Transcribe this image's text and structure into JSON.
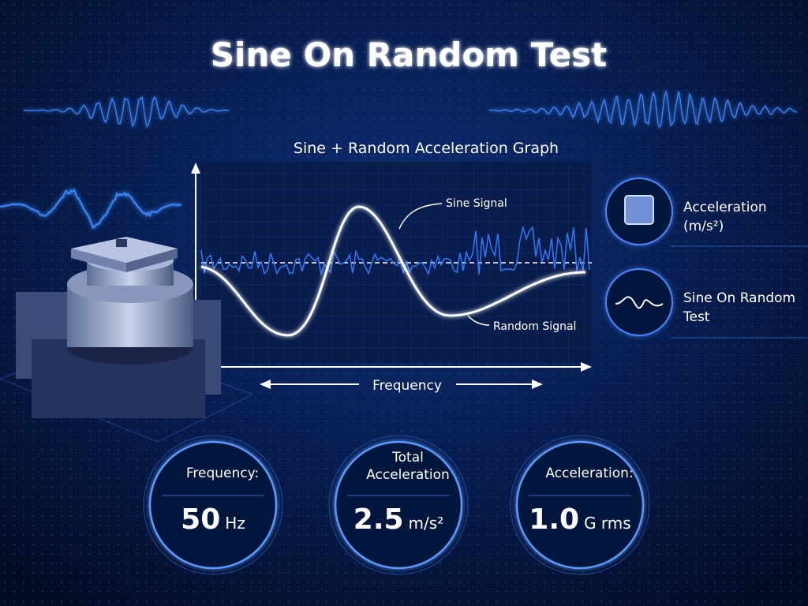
{
  "header": {
    "title": "Sine On Random Test"
  },
  "graph": {
    "title": "Sine + Random Acceleration Graph",
    "x_axis_label": "Frequency",
    "sine_annotation": "Sine Signal",
    "random_annotation": "Random Signal"
  },
  "legend": [
    {
      "lines": [
        "Acceleration",
        "(m/s²)"
      ]
    },
    {
      "lines": [
        "Sine On Random",
        "Test"
      ]
    }
  ],
  "stats": [
    {
      "lines": [
        "Frequency:"
      ],
      "value": "50",
      "unit": "Hz"
    },
    {
      "lines": [
        "Total",
        "Acceleration"
      ],
      "value": "2.5",
      "unit": "m/s²"
    },
    {
      "lines": [
        "Acceleration:"
      ],
      "value": "1.0",
      "unit": "G rms"
    }
  ]
}
